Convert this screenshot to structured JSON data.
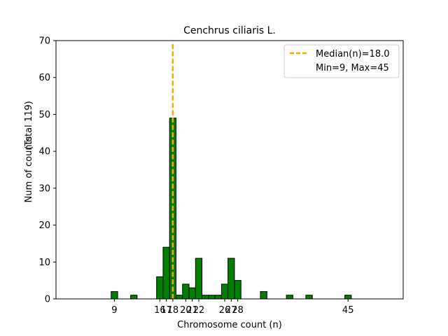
{
  "chart_data": {
    "type": "bar",
    "title": "Cenchrus ciliaris L.",
    "xlabel": "Chromosome count (n)",
    "ylabel": "Num of counts",
    "ylabel2": "(Total 119)",
    "xlim": [
      0,
      53.5
    ],
    "ylim": [
      0,
      70
    ],
    "y_ticks": [
      0,
      10,
      20,
      30,
      40,
      50,
      60,
      70
    ],
    "x_ticks": [
      9,
      16,
      17,
      18,
      20,
      21,
      22,
      26,
      27,
      28,
      45
    ],
    "bins": [
      {
        "n": 9,
        "count": 2
      },
      {
        "n": 12,
        "count": 1
      },
      {
        "n": 16,
        "count": 6
      },
      {
        "n": 17,
        "count": 14
      },
      {
        "n": 18,
        "count": 49
      },
      {
        "n": 19,
        "count": 1
      },
      {
        "n": 20,
        "count": 4
      },
      {
        "n": 21,
        "count": 3
      },
      {
        "n": 22,
        "count": 11
      },
      {
        "n": 23,
        "count": 1
      },
      {
        "n": 24,
        "count": 1
      },
      {
        "n": 25,
        "count": 1
      },
      {
        "n": 26,
        "count": 4
      },
      {
        "n": 27,
        "count": 11
      },
      {
        "n": 28,
        "count": 5
      },
      {
        "n": 32,
        "count": 2
      },
      {
        "n": 36,
        "count": 1
      },
      {
        "n": 39,
        "count": 1
      },
      {
        "n": 45,
        "count": 1
      }
    ],
    "median": 18.0,
    "legend": {
      "placement": "top-right",
      "median_label": "Median(n)=18.0",
      "range_label": "Min=9, Max=45"
    },
    "colors": {
      "bar_fill": "#008000",
      "bar_edge": "#000000",
      "median_line": "#FFA500"
    },
    "grid": false
  }
}
